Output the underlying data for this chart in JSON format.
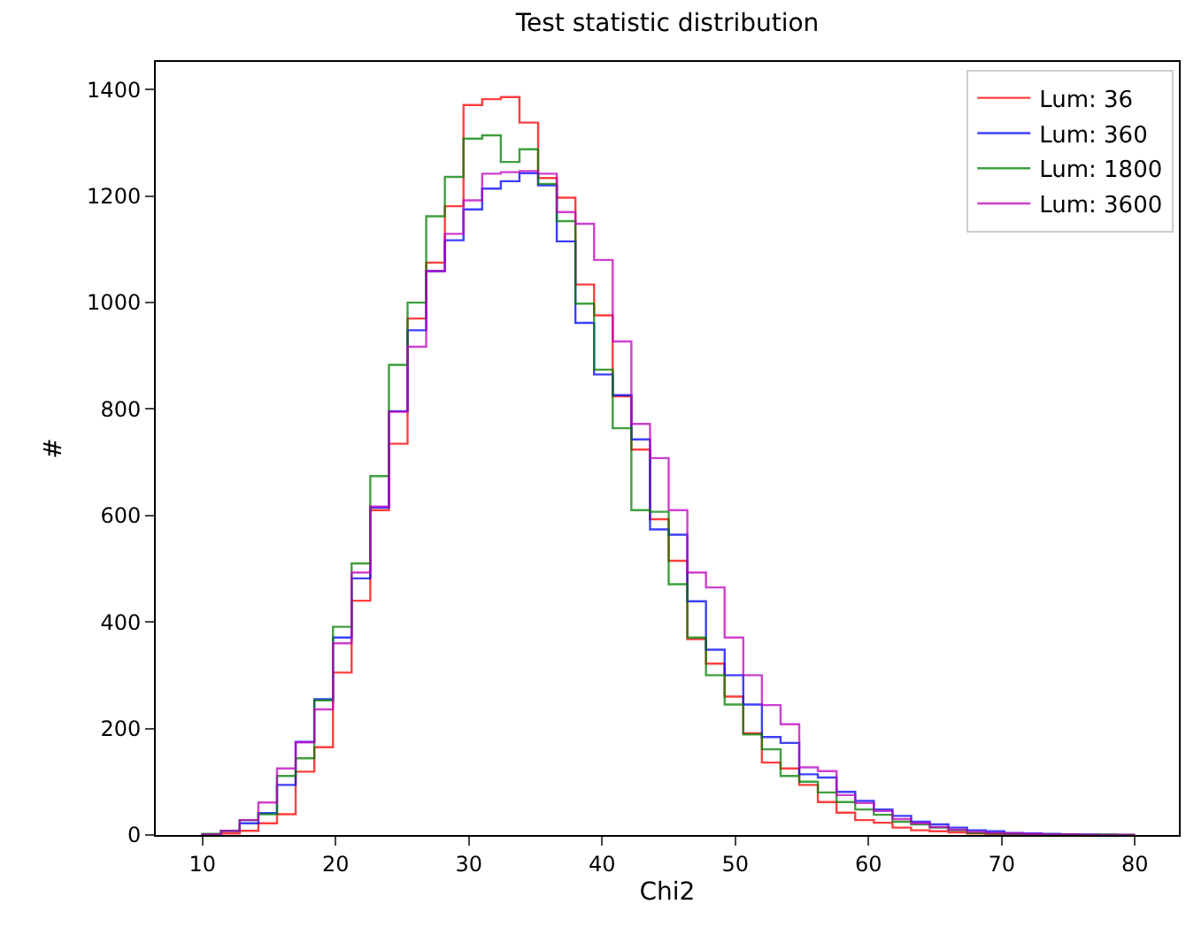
{
  "chart_data": {
    "type": "histogram",
    "title": "Test statistic distribution",
    "xlabel": "Chi2",
    "ylabel": "#",
    "bins": [
      10.0,
      11.4,
      12.8,
      14.2,
      15.6,
      17.0,
      18.4,
      19.8,
      21.2,
      22.6,
      24.0,
      25.4,
      26.8,
      28.2,
      29.6,
      31.0,
      32.4,
      33.8,
      35.2,
      36.6,
      38.0,
      39.4,
      40.8,
      42.2,
      43.6,
      45.0,
      46.4,
      47.8,
      49.2,
      50.6,
      52.0,
      53.4,
      54.8,
      56.2,
      57.6,
      59.0,
      60.4,
      61.8,
      63.2,
      64.6,
      66.0,
      67.4,
      68.8,
      70.2,
      71.6,
      73.0,
      74.4,
      75.8,
      77.2,
      78.6,
      80.0
    ],
    "series": [
      {
        "name": "Lum: 36",
        "color": "#ff0000",
        "values": [
          1,
          3,
          8,
          22,
          39,
          119,
          165,
          305,
          440,
          610,
          735,
          970,
          1075,
          1181,
          1371,
          1382,
          1386,
          1338,
          1234,
          1197,
          1034,
          976,
          824,
          724,
          593,
          515,
          368,
          322,
          260,
          191,
          136,
          125,
          94,
          62,
          42,
          28,
          23,
          14,
          9,
          7,
          5,
          3,
          2,
          1,
          1,
          0,
          1,
          0,
          0,
          0
        ]
      },
      {
        "name": "Lum: 360",
        "color": "#0000ff",
        "values": [
          1,
          8,
          22,
          41,
          94,
          175,
          255,
          371,
          482,
          615,
          796,
          948,
          1059,
          1117,
          1175,
          1214,
          1228,
          1243,
          1220,
          1115,
          962,
          865,
          826,
          743,
          574,
          564,
          439,
          348,
          300,
          245,
          184,
          173,
          114,
          108,
          81,
          64,
          48,
          36,
          25,
          20,
          14,
          9,
          7,
          4,
          3,
          2,
          1,
          1,
          0,
          0
        ]
      },
      {
        "name": "Lum: 1800",
        "color": "#008000",
        "values": [
          2,
          8,
          28,
          39,
          111,
          144,
          253,
          391,
          510,
          674,
          883,
          1000,
          1162,
          1236,
          1308,
          1314,
          1264,
          1288,
          1223,
          1153,
          998,
          874,
          764,
          610,
          607,
          471,
          371,
          300,
          245,
          189,
          161,
          111,
          100,
          80,
          62,
          48,
          38,
          25,
          20,
          14,
          9,
          4,
          3,
          2,
          1,
          1,
          1,
          0,
          1,
          0
        ]
      },
      {
        "name": "Lum: 3600",
        "color": "#bf00bf",
        "values": [
          1,
          8,
          28,
          61,
          125,
          174,
          236,
          360,
          493,
          617,
          795,
          917,
          1059,
          1129,
          1192,
          1242,
          1245,
          1247,
          1242,
          1170,
          1148,
          1080,
          927,
          772,
          708,
          610,
          493,
          465,
          371,
          300,
          244,
          208,
          127,
          120,
          75,
          60,
          45,
          30,
          22,
          15,
          10,
          6,
          4,
          3,
          2,
          1,
          1,
          0,
          0,
          0
        ]
      }
    ],
    "xlim": [
      6.5,
      83.3
    ],
    "xticks": [
      10,
      20,
      30,
      40,
      50,
      60,
      70,
      80
    ],
    "ylim": [
      0,
      1452
    ],
    "yticks": [
      0,
      200,
      400,
      600,
      800,
      1000,
      1200,
      1400
    ],
    "legend": "top right"
  }
}
